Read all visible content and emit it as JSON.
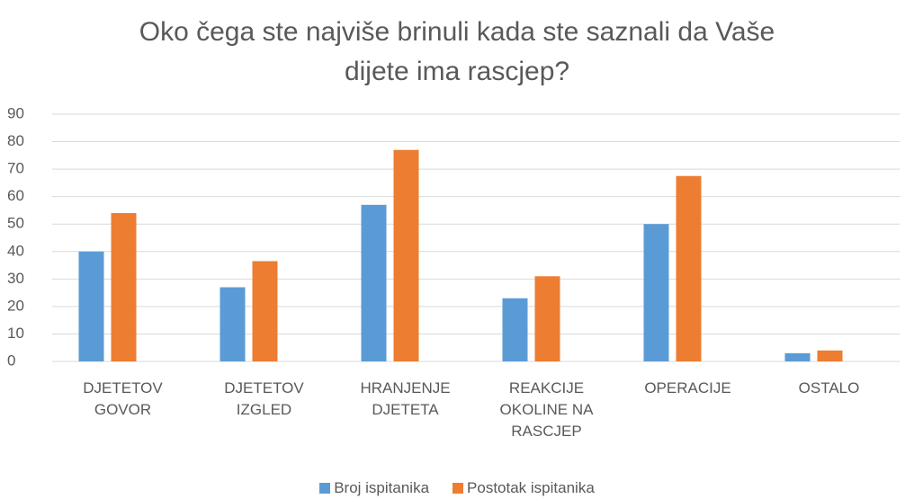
{
  "chart_data": {
    "type": "bar",
    "title": "Oko čega ste najviše brinuli kada ste saznali da Vaše\ndijete ima rascjep?",
    "categories": [
      "DJETETOV\nGOVOR",
      "DJETETOV\nIZGLED",
      "HRANJENJE\nDJETETA",
      "REAKCIJE\nOKOLINE NA\nRASCJEP",
      "OPERACIJE",
      "OSTALO"
    ],
    "series": [
      {
        "name": "Broj ispitanika",
        "color": "#5b9bd5",
        "values": [
          40,
          27,
          57,
          23,
          50,
          3
        ]
      },
      {
        "name": "Postotak ispitanika",
        "color": "#ed7d31",
        "values": [
          54,
          36.5,
          77,
          31,
          67.5,
          4
        ]
      }
    ],
    "ylim": [
      0,
      90
    ],
    "yticks": [
      0,
      10,
      20,
      30,
      40,
      50,
      60,
      70,
      80,
      90
    ],
    "grid": true,
    "legend": "bottom"
  }
}
